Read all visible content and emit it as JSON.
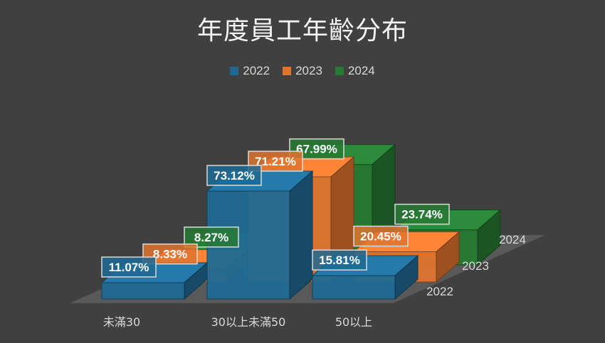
{
  "chart_data": {
    "type": "bar",
    "title": "年度員工年齡分布",
    "categories": [
      "未滿30",
      "30以上未滿50",
      "50以上"
    ],
    "series": [
      {
        "name": "2022",
        "values": [
          11.07,
          73.12,
          15.81
        ],
        "labels": [
          "11.07%",
          "73.12%",
          "15.81%"
        ],
        "color": "#1f6a94"
      },
      {
        "name": "2023",
        "values": [
          8.33,
          71.21,
          20.45
        ],
        "labels": [
          "8.33%",
          "71.21%",
          "20.45%"
        ],
        "color": "#e0732e"
      },
      {
        "name": "2024",
        "values": [
          8.27,
          67.99,
          23.74
        ],
        "labels": [
          "8.27%",
          "67.99%",
          "23.74%"
        ],
        "color": "#267a33"
      }
    ],
    "depth_labels": [
      "2022",
      "2023",
      "2024"
    ],
    "legend_position": "top",
    "ylim": [
      0,
      80
    ],
    "grid": false
  }
}
